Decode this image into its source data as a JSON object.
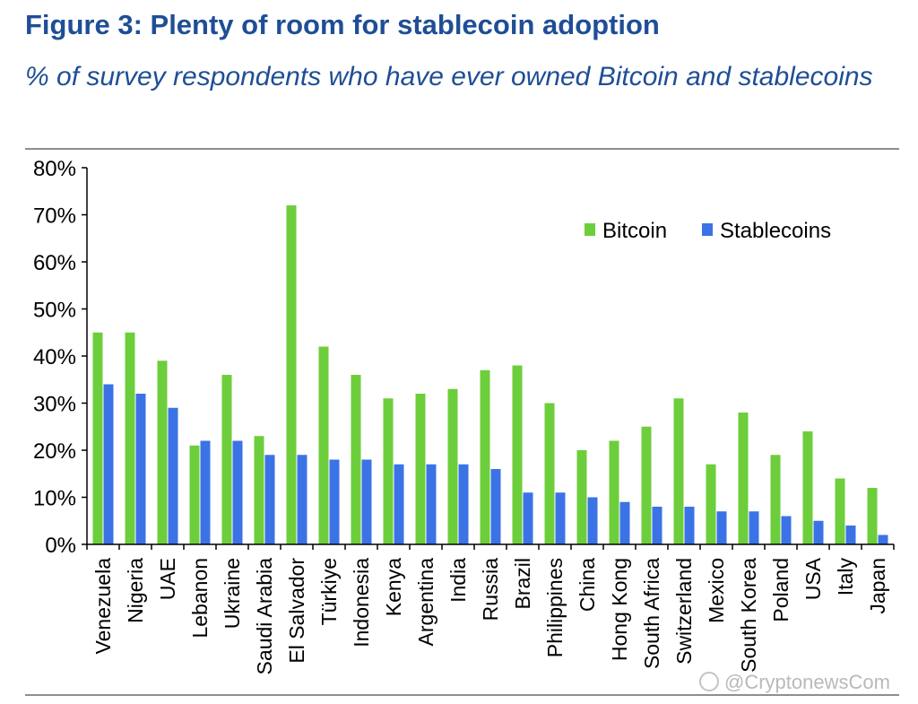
{
  "header": {
    "title": "Figure 3: Plenty of room for stablecoin adoption",
    "subtitle": "% of survey respondents who have ever owned Bitcoin and stablecoins"
  },
  "watermark": {
    "text": "@CryptonewsCom"
  },
  "chart_data": {
    "type": "bar",
    "categories": [
      "Venezuela",
      "Nigeria",
      "UAE",
      "Lebanon",
      "Ukraine",
      "Saudi Arabia",
      "El Salvador",
      "Türkiye",
      "Indonesia",
      "Kenya",
      "Argentina",
      "India",
      "Russia",
      "Brazil",
      "Philippines",
      "China",
      "Hong Kong",
      "South Africa",
      "Switzerland",
      "Mexico",
      "South Korea",
      "Poland",
      "USA",
      "Italy",
      "Japan"
    ],
    "series": [
      {
        "name": "Bitcoin",
        "color": "#6dce3b",
        "values": [
          45,
          45,
          39,
          21,
          36,
          23,
          72,
          42,
          36,
          31,
          32,
          33,
          37,
          38,
          30,
          20,
          22,
          25,
          31,
          17,
          28,
          19,
          24,
          14,
          12
        ]
      },
      {
        "name": "Stablecoins",
        "color": "#3b73e6",
        "values": [
          34,
          32,
          29,
          22,
          22,
          19,
          19,
          18,
          18,
          17,
          17,
          17,
          16,
          11,
          11,
          10,
          9,
          8,
          8,
          7,
          7,
          6,
          5,
          4,
          2
        ]
      }
    ],
    "ylim": [
      0,
      80
    ],
    "yticks": [
      0,
      10,
      20,
      30,
      40,
      50,
      60,
      70,
      80
    ],
    "ytick_labels": [
      "0%",
      "10%",
      "20%",
      "30%",
      "40%",
      "50%",
      "60%",
      "70%",
      "80%"
    ],
    "legend_position": "top-right",
    "grid": false
  }
}
